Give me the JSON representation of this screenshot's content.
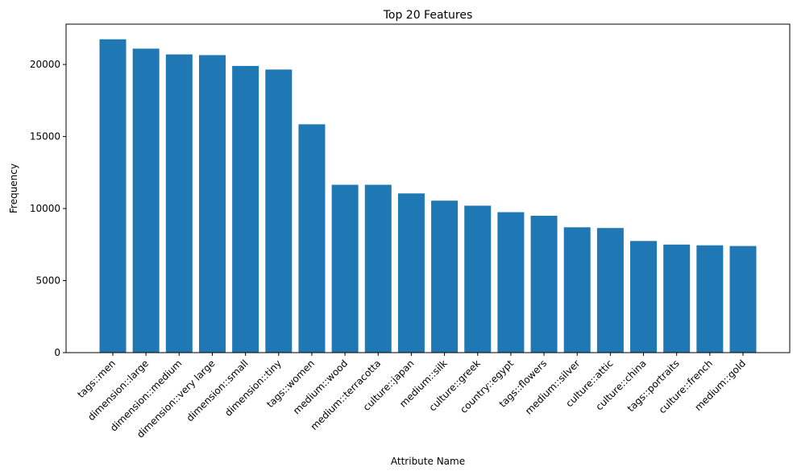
{
  "chart_data": {
    "type": "bar",
    "title": "Top 20 Features",
    "xlabel": "Attribute Name",
    "ylabel": "Frequency",
    "ylim": [
      0,
      22800
    ],
    "yticks": [
      0,
      5000,
      10000,
      15000,
      20000
    ],
    "ytick_labels": [
      "0",
      "5000",
      "10000",
      "15000",
      "20000"
    ],
    "bar_color": "#1f77b4",
    "grid": false,
    "categories": [
      "tags::men",
      "dimension::large",
      "dimension::medium",
      "dimension::very large",
      "dimension::small",
      "dimension::tiny",
      "tags::women",
      "medium::wood",
      "medium::terracotta",
      "culture::japan",
      "medium::silk",
      "culture::greek",
      "country::egypt",
      "tags::flowers",
      "medium::silver",
      "culture::attic",
      "culture::china",
      "tags::portraits",
      "culture::french",
      "medium::gold"
    ],
    "values": [
      21750,
      21100,
      20700,
      20650,
      19900,
      19650,
      15850,
      11650,
      11650,
      11050,
      10550,
      10200,
      9750,
      9500,
      8700,
      8650,
      7750,
      7500,
      7450,
      7400
    ]
  }
}
